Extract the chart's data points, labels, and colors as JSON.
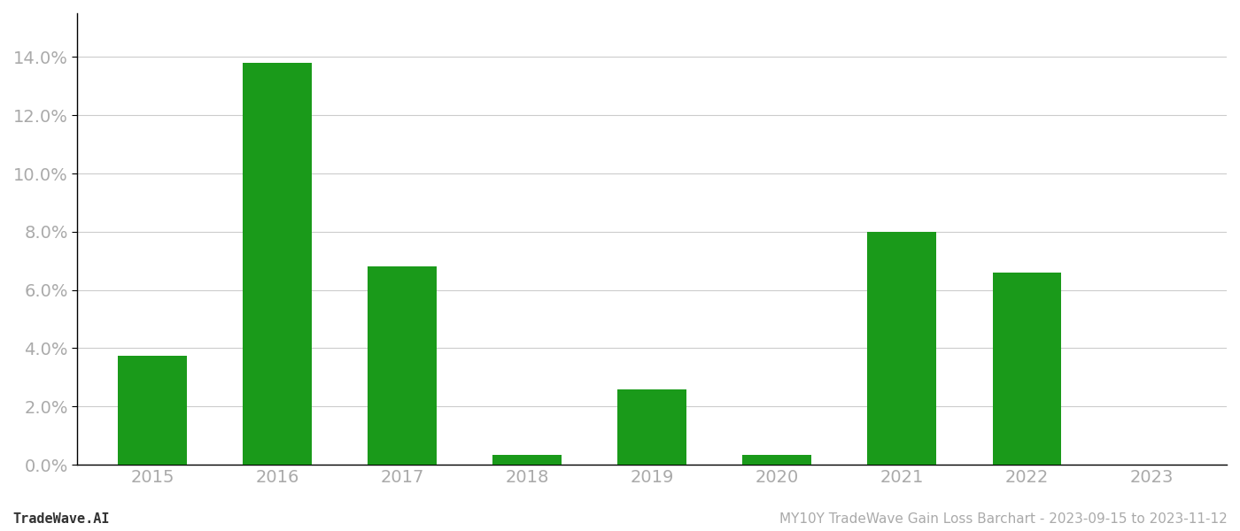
{
  "categories": [
    "2015",
    "2016",
    "2017",
    "2018",
    "2019",
    "2020",
    "2021",
    "2022",
    "2023"
  ],
  "values": [
    0.0375,
    0.138,
    0.068,
    0.0035,
    0.026,
    0.0035,
    0.08,
    0.066,
    0.0
  ],
  "bar_color": "#1a9a1a",
  "background_color": "#ffffff",
  "grid_color": "#cccccc",
  "ylim": [
    0,
    0.155
  ],
  "yticks": [
    0.0,
    0.02,
    0.04,
    0.06,
    0.08,
    0.1,
    0.12,
    0.14
  ],
  "footer_left": "TradeWave.AI",
  "footer_right": "MY10Y TradeWave Gain Loss Barchart - 2023-09-15 to 2023-11-12",
  "footer_fontsize": 11,
  "tick_label_color": "#aaaaaa",
  "tick_fontsize": 14,
  "spine_color": "#000000",
  "bottom_spine_color": "#000000",
  "bar_width": 0.55
}
